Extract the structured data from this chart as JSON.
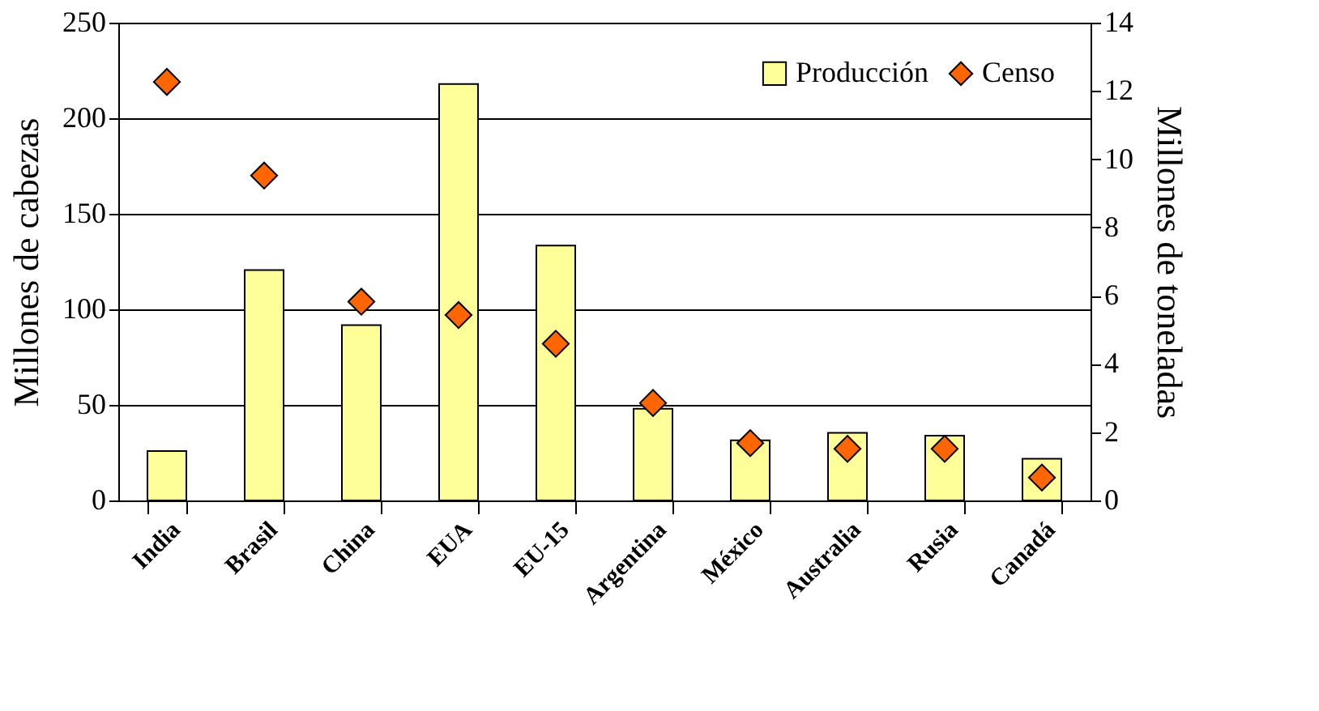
{
  "chart_data": {
    "type": "bar",
    "categories": [
      "India",
      "Brasil",
      "China",
      "EUA",
      "EU-15",
      "Argentina",
      "México",
      "Australia",
      "Rusia",
      "Canadá"
    ],
    "ylabel": "Millones de cabezas",
    "y2label": "Millones de toneladas",
    "ylim": [
      0,
      250
    ],
    "yticks": [
      0,
      50,
      100,
      150,
      200,
      250
    ],
    "y2lim": [
      0,
      14
    ],
    "y2ticks": [
      0,
      2,
      4,
      6,
      8,
      10,
      12,
      14
    ],
    "grid": "y",
    "legend": "top right",
    "marker": "diamond",
    "series": [
      {
        "name": "Producción",
        "axis": "y2",
        "color": "#ffff99",
        "values": [
          1.45,
          6.75,
          5.14,
          12.2,
          7.47,
          2.69,
          1.76,
          1.98,
          1.9,
          1.22
        ]
      },
      {
        "name": "Censo",
        "type": "scatter",
        "color": "#ff6600",
        "values": [
          219,
          170,
          104,
          97,
          82,
          51,
          30,
          27,
          27,
          12
        ]
      }
    ]
  }
}
